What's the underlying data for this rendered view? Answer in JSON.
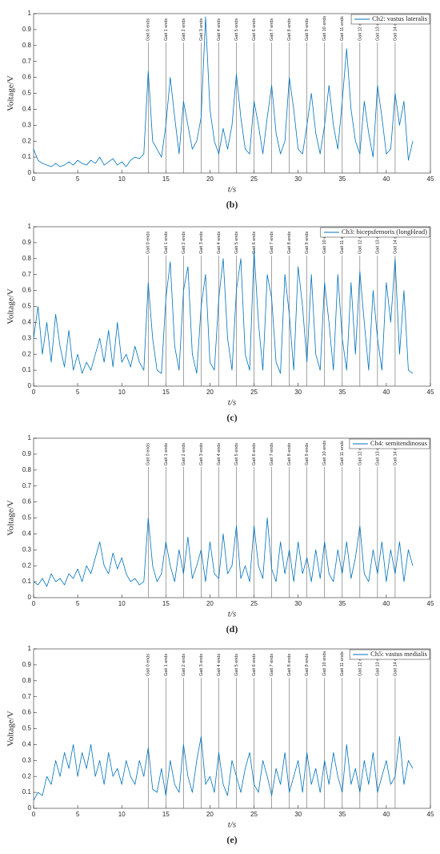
{
  "chart_data": [
    {
      "type": "line",
      "caption": "(b)",
      "ylabel": "Voltage/V",
      "xlabel": "t/s",
      "legend": "top-right",
      "grid": false,
      "xlim": [
        0,
        45
      ],
      "xticks": [
        0,
        5,
        10,
        15,
        20,
        25,
        30,
        35,
        40,
        45
      ],
      "ylim": [
        0,
        1
      ],
      "yticks": [
        0,
        0.1,
        0.2,
        0.3,
        0.4,
        0.5,
        0.6,
        0.7,
        0.8,
        0.9,
        1
      ],
      "x": [
        0,
        0.5,
        1,
        1.5,
        2,
        2.5,
        3,
        3.5,
        4,
        4.5,
        5,
        5.5,
        6,
        6.5,
        7,
        7.5,
        8,
        8.5,
        9,
        9.5,
        10,
        10.5,
        11,
        11.5,
        12,
        12.5,
        13,
        13.5,
        14,
        14.5,
        15,
        15.5,
        16,
        16.5,
        17,
        17.5,
        18,
        18.5,
        19,
        19.5,
        20,
        20.5,
        21,
        21.5,
        22,
        22.5,
        23,
        23.5,
        24,
        24.5,
        25,
        25.5,
        26,
        26.5,
        27,
        27.5,
        28,
        28.5,
        29,
        29.5,
        30,
        30.5,
        31,
        31.5,
        32,
        32.5,
        33,
        33.5,
        34,
        34.5,
        35,
        35.5,
        36,
        36.5,
        37,
        37.5,
        38,
        38.5,
        39,
        39.5,
        40,
        40.5,
        41,
        41.5,
        42,
        42.5,
        43
      ],
      "series": [
        {
          "name": "Ch2: vastus lateralis",
          "color": "#0072bd",
          "values": [
            0.15,
            0.08,
            0.06,
            0.05,
            0.04,
            0.06,
            0.04,
            0.05,
            0.07,
            0.05,
            0.08,
            0.06,
            0.05,
            0.08,
            0.06,
            0.1,
            0.05,
            0.07,
            0.09,
            0.05,
            0.07,
            0.04,
            0.08,
            0.1,
            0.09,
            0.12,
            0.64,
            0.2,
            0.15,
            0.1,
            0.3,
            0.6,
            0.35,
            0.12,
            0.45,
            0.3,
            0.15,
            0.2,
            0.35,
            0.98,
            0.4,
            0.2,
            0.12,
            0.28,
            0.15,
            0.3,
            0.62,
            0.35,
            0.15,
            0.12,
            0.45,
            0.3,
            0.12,
            0.35,
            0.55,
            0.25,
            0.12,
            0.2,
            0.6,
            0.4,
            0.15,
            0.12,
            0.3,
            0.5,
            0.25,
            0.12,
            0.3,
            0.55,
            0.3,
            0.15,
            0.45,
            0.78,
            0.4,
            0.2,
            0.12,
            0.45,
            0.25,
            0.1,
            0.55,
            0.35,
            0.12,
            0.15,
            0.5,
            0.3,
            0.45,
            0.08,
            0.2
          ]
        }
      ],
      "annotations": [
        {
          "x": 13,
          "label": "Gait 0 ends"
        },
        {
          "x": 15,
          "label": "Gait 1 ends"
        },
        {
          "x": 17,
          "label": "Gait 2 ends"
        },
        {
          "x": 19,
          "label": "Gait 3 ends"
        },
        {
          "x": 21,
          "label": "Gait 4 ends"
        },
        {
          "x": 23,
          "label": "Gait 5 ends"
        },
        {
          "x": 25,
          "label": "Gait 6 ends"
        },
        {
          "x": 27,
          "label": "Gait 7 ends"
        },
        {
          "x": 29,
          "label": "Gait 8 ends"
        },
        {
          "x": 31,
          "label": "Gait 9 ends"
        },
        {
          "x": 33,
          "label": "Gait 10 ends"
        },
        {
          "x": 35,
          "label": "Gait 11 ends"
        },
        {
          "x": 37,
          "label": "Gait 12 ends"
        },
        {
          "x": 39,
          "label": "Gait 13 ends"
        },
        {
          "x": 41,
          "label": "Gait 14 ends"
        }
      ]
    },
    {
      "type": "line",
      "caption": "(c)",
      "ylabel": "Voltage/V",
      "xlabel": "t/s",
      "legend": "top-right",
      "grid": false,
      "xlim": [
        0,
        45
      ],
      "xticks": [
        0,
        5,
        10,
        15,
        20,
        25,
        30,
        35,
        40,
        45
      ],
      "ylim": [
        0,
        1
      ],
      "yticks": [
        0,
        0.1,
        0.2,
        0.3,
        0.4,
        0.5,
        0.6,
        0.7,
        0.8,
        0.9,
        1
      ],
      "x": [
        0,
        0.5,
        1,
        1.5,
        2,
        2.5,
        3,
        3.5,
        4,
        4.5,
        5,
        5.5,
        6,
        6.5,
        7,
        7.5,
        8,
        8.5,
        9,
        9.5,
        10,
        10.5,
        11,
        11.5,
        12,
        12.5,
        13,
        13.5,
        14,
        14.5,
        15,
        15.5,
        16,
        16.5,
        17,
        17.5,
        18,
        18.5,
        19,
        19.5,
        20,
        20.5,
        21,
        21.5,
        22,
        22.5,
        23,
        23.5,
        24,
        24.5,
        25,
        25.5,
        26,
        26.5,
        27,
        27.5,
        28,
        28.5,
        29,
        29.5,
        30,
        30.5,
        31,
        31.5,
        32,
        32.5,
        33,
        33.5,
        34,
        34.5,
        35,
        35.5,
        36,
        36.5,
        37,
        37.5,
        38,
        38.5,
        39,
        39.5,
        40,
        40.5,
        41,
        41.5,
        42,
        42.5,
        43
      ],
      "series": [
        {
          "name": "Ch3: bicepsfemoris (longHead)",
          "color": "#0072bd",
          "values": [
            0.3,
            0.5,
            0.2,
            0.4,
            0.15,
            0.45,
            0.25,
            0.12,
            0.35,
            0.1,
            0.2,
            0.08,
            0.15,
            0.1,
            0.2,
            0.3,
            0.15,
            0.35,
            0.12,
            0.4,
            0.15,
            0.2,
            0.12,
            0.25,
            0.15,
            0.1,
            0.65,
            0.3,
            0.1,
            0.08,
            0.55,
            0.78,
            0.25,
            0.1,
            0.6,
            0.75,
            0.2,
            0.08,
            0.5,
            0.7,
            0.15,
            0.1,
            0.55,
            0.8,
            0.3,
            0.1,
            0.6,
            0.8,
            0.2,
            0.1,
            0.85,
            0.4,
            0.1,
            0.7,
            0.55,
            0.15,
            0.08,
            0.7,
            0.45,
            0.1,
            0.75,
            0.5,
            0.15,
            0.7,
            0.2,
            0.1,
            0.65,
            0.4,
            0.1,
            0.7,
            0.3,
            0.1,
            0.65,
            0.2,
            0.72,
            0.4,
            0.1,
            0.6,
            0.3,
            0.1,
            0.65,
            0.4,
            0.8,
            0.2,
            0.6,
            0.1,
            0.08
          ]
        }
      ],
      "annotations": [
        {
          "x": 13,
          "label": "Gait 0 ends"
        },
        {
          "x": 15,
          "label": "Gait 1 ends"
        },
        {
          "x": 17,
          "label": "Gait 2 ends"
        },
        {
          "x": 19,
          "label": "Gait 3 ends"
        },
        {
          "x": 21,
          "label": "Gait 4 ends"
        },
        {
          "x": 23,
          "label": "Gait 5 ends"
        },
        {
          "x": 25,
          "label": "Gait 6 ends"
        },
        {
          "x": 27,
          "label": "Gait 7 ends"
        },
        {
          "x": 29,
          "label": "Gait 8 ends"
        },
        {
          "x": 31,
          "label": "Gait 9 ends"
        },
        {
          "x": 33,
          "label": "Gait 10 ends"
        },
        {
          "x": 35,
          "label": "Gait 11 ends"
        },
        {
          "x": 37,
          "label": "Gait 12 ends"
        },
        {
          "x": 39,
          "label": "Gait 13 ends"
        },
        {
          "x": 41,
          "label": "Gait 14 ends"
        }
      ]
    },
    {
      "type": "line",
      "caption": "(d)",
      "ylabel": "Voltage/V",
      "xlabel": "t/s",
      "legend": "top-right",
      "grid": false,
      "xlim": [
        0,
        45
      ],
      "xticks": [
        0,
        5,
        10,
        15,
        20,
        25,
        30,
        35,
        40,
        45
      ],
      "ylim": [
        0,
        1
      ],
      "yticks": [
        0,
        0.1,
        0.2,
        0.3,
        0.4,
        0.5,
        0.6,
        0.7,
        0.8,
        0.9,
        1
      ],
      "x": [
        0,
        0.5,
        1,
        1.5,
        2,
        2.5,
        3,
        3.5,
        4,
        4.5,
        5,
        5.5,
        6,
        6.5,
        7,
        7.5,
        8,
        8.5,
        9,
        9.5,
        10,
        10.5,
        11,
        11.5,
        12,
        12.5,
        13,
        13.5,
        14,
        14.5,
        15,
        15.5,
        16,
        16.5,
        17,
        17.5,
        18,
        18.5,
        19,
        19.5,
        20,
        20.5,
        21,
        21.5,
        22,
        22.5,
        23,
        23.5,
        24,
        24.5,
        25,
        25.5,
        26,
        26.5,
        27,
        27.5,
        28,
        28.5,
        29,
        29.5,
        30,
        30.5,
        31,
        31.5,
        32,
        32.5,
        33,
        33.5,
        34,
        34.5,
        35,
        35.5,
        36,
        36.5,
        37,
        37.5,
        38,
        38.5,
        39,
        39.5,
        40,
        40.5,
        41,
        41.5,
        42,
        42.5,
        43
      ],
      "series": [
        {
          "name": "Ch4: semitendinosus",
          "color": "#0072bd",
          "values": [
            0.1,
            0.08,
            0.12,
            0.07,
            0.15,
            0.1,
            0.12,
            0.08,
            0.15,
            0.12,
            0.18,
            0.1,
            0.2,
            0.15,
            0.25,
            0.35,
            0.2,
            0.15,
            0.28,
            0.18,
            0.25,
            0.15,
            0.1,
            0.12,
            0.08,
            0.1,
            0.5,
            0.2,
            0.1,
            0.15,
            0.35,
            0.2,
            0.1,
            0.3,
            0.15,
            0.38,
            0.12,
            0.2,
            0.3,
            0.1,
            0.35,
            0.15,
            0.12,
            0.4,
            0.15,
            0.2,
            0.45,
            0.12,
            0.2,
            0.1,
            0.45,
            0.2,
            0.12,
            0.5,
            0.18,
            0.1,
            0.35,
            0.15,
            0.3,
            0.1,
            0.35,
            0.15,
            0.25,
            0.1,
            0.3,
            0.12,
            0.35,
            0.15,
            0.1,
            0.3,
            0.15,
            0.35,
            0.12,
            0.25,
            0.45,
            0.15,
            0.1,
            0.3,
            0.15,
            0.35,
            0.1,
            0.3,
            0.15,
            0.35,
            0.1,
            0.3,
            0.2
          ]
        }
      ],
      "annotations": [
        {
          "x": 13,
          "label": "Gait 0 ends"
        },
        {
          "x": 15,
          "label": "Gait 1 ends"
        },
        {
          "x": 17,
          "label": "Gait 2 ends"
        },
        {
          "x": 19,
          "label": "Gait 3 ends"
        },
        {
          "x": 21,
          "label": "Gait 4 ends"
        },
        {
          "x": 23,
          "label": "Gait 5 ends"
        },
        {
          "x": 25,
          "label": "Gait 6 ends"
        },
        {
          "x": 27,
          "label": "Gait 7 ends"
        },
        {
          "x": 29,
          "label": "Gait 8 ends"
        },
        {
          "x": 31,
          "label": "Gait 9 ends"
        },
        {
          "x": 33,
          "label": "Gait 10 ends"
        },
        {
          "x": 35,
          "label": "Gait 11 ends"
        },
        {
          "x": 37,
          "label": "Gait 12 ends"
        },
        {
          "x": 39,
          "label": "Gait 13 ends"
        },
        {
          "x": 41,
          "label": "Gait 14 ends"
        }
      ]
    },
    {
      "type": "line",
      "caption": "(e)",
      "ylabel": "Voltage/V",
      "xlabel": "t/s",
      "legend": "top-right",
      "grid": false,
      "xlim": [
        0,
        45
      ],
      "xticks": [
        0,
        5,
        10,
        15,
        20,
        25,
        30,
        35,
        40,
        45
      ],
      "ylim": [
        0,
        1
      ],
      "yticks": [
        0,
        0.1,
        0.2,
        0.3,
        0.4,
        0.5,
        0.6,
        0.7,
        0.8,
        0.9,
        1
      ],
      "x": [
        0,
        0.5,
        1,
        1.5,
        2,
        2.5,
        3,
        3.5,
        4,
        4.5,
        5,
        5.5,
        6,
        6.5,
        7,
        7.5,
        8,
        8.5,
        9,
        9.5,
        10,
        10.5,
        11,
        11.5,
        12,
        12.5,
        13,
        13.5,
        14,
        14.5,
        15,
        15.5,
        16,
        16.5,
        17,
        17.5,
        18,
        18.5,
        19,
        19.5,
        20,
        20.5,
        21,
        21.5,
        22,
        22.5,
        23,
        23.5,
        24,
        24.5,
        25,
        25.5,
        26,
        26.5,
        27,
        27.5,
        28,
        28.5,
        29,
        29.5,
        30,
        30.5,
        31,
        31.5,
        32,
        32.5,
        33,
        33.5,
        34,
        34.5,
        35,
        35.5,
        36,
        36.5,
        37,
        37.5,
        38,
        38.5,
        39,
        39.5,
        40,
        40.5,
        41,
        41.5,
        42,
        42.5,
        43
      ],
      "series": [
        {
          "name": "Ch5: vastus medialis",
          "color": "#0072bd",
          "values": [
            0.05,
            0.1,
            0.08,
            0.2,
            0.15,
            0.3,
            0.2,
            0.35,
            0.25,
            0.4,
            0.2,
            0.35,
            0.25,
            0.4,
            0.2,
            0.3,
            0.15,
            0.35,
            0.2,
            0.25,
            0.15,
            0.3,
            0.2,
            0.15,
            0.3,
            0.2,
            0.38,
            0.12,
            0.1,
            0.25,
            0.08,
            0.3,
            0.15,
            0.1,
            0.4,
            0.2,
            0.1,
            0.3,
            0.45,
            0.15,
            0.2,
            0.1,
            0.35,
            0.15,
            0.08,
            0.3,
            0.2,
            0.1,
            0.25,
            0.35,
            0.15,
            0.1,
            0.3,
            0.2,
            0.08,
            0.25,
            0.15,
            0.35,
            0.1,
            0.2,
            0.3,
            0.1,
            0.35,
            0.15,
            0.25,
            0.1,
            0.3,
            0.15,
            0.35,
            0.2,
            0.1,
            0.4,
            0.15,
            0.25,
            0.1,
            0.3,
            0.15,
            0.35,
            0.1,
            0.2,
            0.3,
            0.15,
            0.2,
            0.45,
            0.15,
            0.3,
            0.25
          ]
        }
      ],
      "annotations": [
        {
          "x": 13,
          "label": "Gait 0 ends"
        },
        {
          "x": 15,
          "label": "Gait 1 ends"
        },
        {
          "x": 17,
          "label": "Gait 2 ends"
        },
        {
          "x": 19,
          "label": "Gait 3 ends"
        },
        {
          "x": 21,
          "label": "Gait 4 ends"
        },
        {
          "x": 23,
          "label": "Gait 5 ends"
        },
        {
          "x": 25,
          "label": "Gait 6 ends"
        },
        {
          "x": 27,
          "label": "Gait 7 ends"
        },
        {
          "x": 29,
          "label": "Gait 8 ends"
        },
        {
          "x": 31,
          "label": "Gait 9 ends"
        },
        {
          "x": 33,
          "label": "Gait 10 ends"
        },
        {
          "x": 35,
          "label": "Gait 11 ends"
        },
        {
          "x": 37,
          "label": "Gait 12 ends"
        },
        {
          "x": 39,
          "label": "Gait 13 ends"
        },
        {
          "x": 41,
          "label": "Gait 14 ends"
        }
      ]
    }
  ]
}
